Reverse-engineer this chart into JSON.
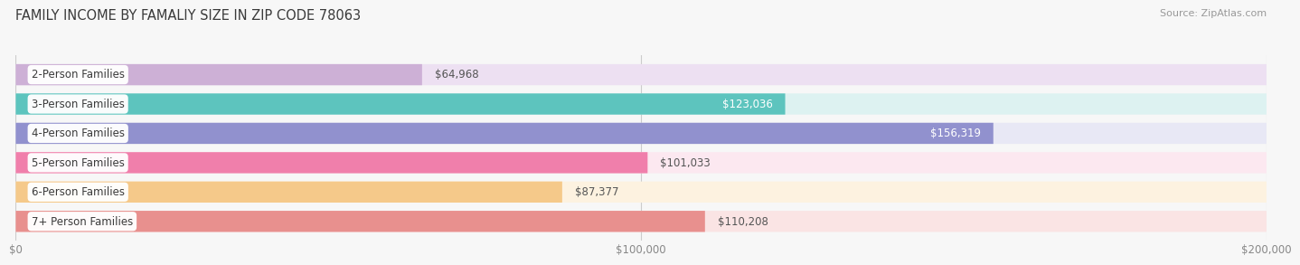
{
  "title": "FAMILY INCOME BY FAMALIY SIZE IN ZIP CODE 78063",
  "source": "Source: ZipAtlas.com",
  "categories": [
    "2-Person Families",
    "3-Person Families",
    "4-Person Families",
    "5-Person Families",
    "6-Person Families",
    "7+ Person Families"
  ],
  "values": [
    64968,
    123036,
    156319,
    101033,
    87377,
    110208
  ],
  "labels": [
    "$64,968",
    "$123,036",
    "$156,319",
    "$101,033",
    "$87,377",
    "$110,208"
  ],
  "bar_colors": [
    "#cdb0d6",
    "#5dc4be",
    "#9191ce",
    "#f07fab",
    "#f5c98a",
    "#e8908e"
  ],
  "bar_bg_colors": [
    "#ede0f2",
    "#ddf2f1",
    "#e8e8f5",
    "#fce8f0",
    "#fdf2e0",
    "#fae4e4"
  ],
  "label_inside": [
    false,
    true,
    true,
    false,
    false,
    false
  ],
  "label_text_colors_outside": [
    "#555555",
    "#555555",
    "#555555",
    "#555555",
    "#555555",
    "#555555"
  ],
  "label_text_colors_inside": [
    "#ffffff",
    "#ffffff",
    "#ffffff",
    "#ffffff",
    "#ffffff",
    "#ffffff"
  ],
  "xlim": [
    0,
    200000
  ],
  "xticks": [
    0,
    100000,
    200000
  ],
  "xtick_labels": [
    "$0",
    "$100,000",
    "$200,000"
  ],
  "background_color": "#f7f7f7",
  "bar_height": 0.72,
  "title_fontsize": 10.5,
  "source_fontsize": 8,
  "label_fontsize": 8.5,
  "tick_fontsize": 8.5,
  "category_fontsize": 8.5
}
